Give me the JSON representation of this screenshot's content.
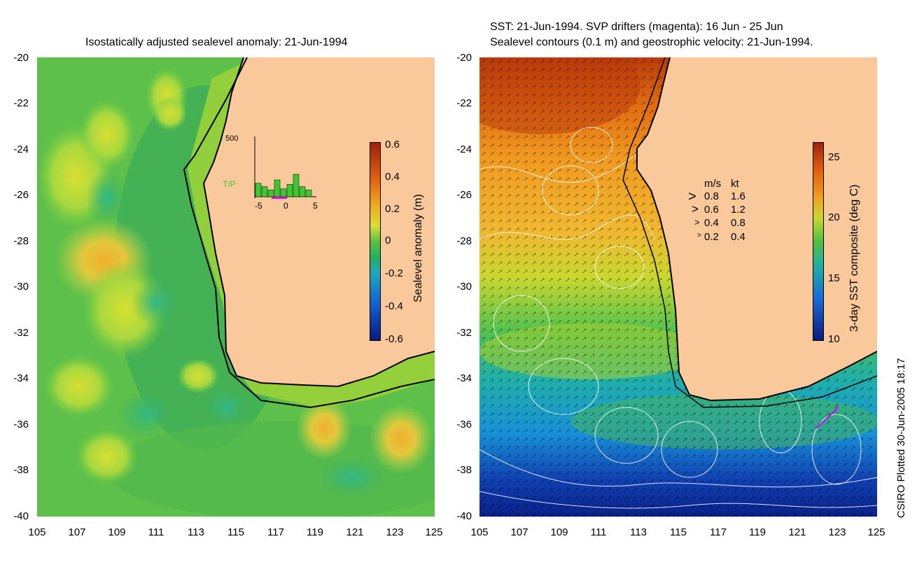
{
  "left_panel": {
    "title": "Isostatically adjusted sealevel anomaly: 21-Jun-1994",
    "y_ticks": [
      "-20",
      "-22",
      "-24",
      "-26",
      "-28",
      "-30",
      "-32",
      "-34",
      "-36",
      "-38",
      "-40"
    ],
    "x_ticks": [
      "105",
      "107",
      "109",
      "111",
      "113",
      "115",
      "117",
      "119",
      "121",
      "123",
      "125"
    ],
    "colorbar": {
      "label": "Sealevel anomaly (m)",
      "ticks": [
        "0.6",
        "0.4",
        "0.2",
        "0",
        "-0.2",
        "-0.4",
        "-0.6"
      ]
    },
    "histogram": {
      "top_label": "500",
      "series_label": "T/P",
      "x_ticks": [
        "-5",
        "0",
        "5"
      ],
      "values": [
        120,
        90,
        60,
        150,
        70,
        110,
        200,
        90,
        60
      ]
    }
  },
  "right_panel": {
    "title_line1": "SST: 21-Jun-1994. SVP drifters (magenta): 16 Jun - 25 Jun",
    "title_line2": "Sealevel contours (0.1 m) and geostrophic velocity: 21-Jun-1994.",
    "y_ticks": [
      "-20",
      "-22",
      "-24",
      "-26",
      "-28",
      "-30",
      "-32",
      "-34",
      "-36",
      "-38",
      "-40"
    ],
    "x_ticks": [
      "105",
      "107",
      "109",
      "111",
      "113",
      "115",
      "117",
      "119",
      "121",
      "123",
      "125"
    ],
    "colorbar": {
      "label": "3-day SST composite (deg C)",
      "ticks": [
        "25",
        "20",
        "15",
        "10"
      ]
    },
    "velocity_legend": {
      "header_ms": "m/s",
      "header_kt": "kt",
      "rows": [
        {
          "ms": "0.8",
          "kt": "1.6"
        },
        {
          "ms": "0.6",
          "kt": "1.2"
        },
        {
          "ms": "0.4",
          "kt": "0.8"
        },
        {
          "ms": "0.2",
          "kt": "0.4"
        }
      ]
    }
  },
  "credit": "CSIRO Plotted 30-Jun-2005 18:17",
  "colors": {
    "land": "#f9c89b",
    "coast": "#000000",
    "drifter": "#d400d4"
  }
}
